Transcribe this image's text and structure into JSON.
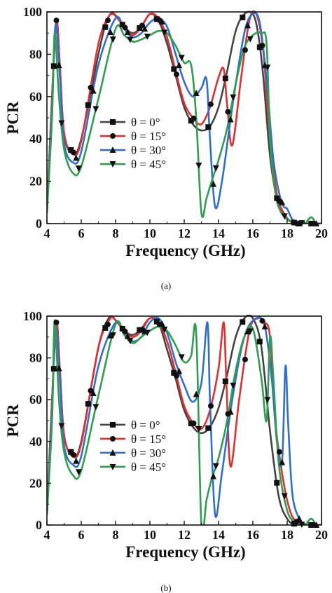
{
  "panels": [
    {
      "label": "(a)",
      "chart_data": {
        "type": "line",
        "xlabel": "Frequency (GHz)",
        "ylabel": "PCR",
        "xlim": [
          4,
          20
        ],
        "ylim": [
          0,
          100
        ],
        "xticks": [
          4,
          6,
          8,
          10,
          12,
          14,
          16,
          18,
          20
        ],
        "yticks": [
          0,
          20,
          40,
          60,
          80,
          100
        ],
        "legend_position": "center-left",
        "series": [
          {
            "name": "θ =  0°",
            "color": "#444444",
            "marker": "square",
            "x": [
              4.0,
              4.3,
              4.55,
              4.75,
              5.0,
              5.5,
              6.0,
              7.0,
              7.5,
              7.9,
              8.5,
              9.0,
              9.5,
              10.0,
              10.5,
              11.0,
              11.5,
              12.0,
              12.5,
              13.0,
              13.5,
              14.0,
              14.5,
              15.0,
              15.5,
              16.0,
              16.3,
              16.6,
              17.0,
              17.4,
              17.8,
              18.2,
              18.6,
              19.0,
              19.5,
              20.0
            ],
            "y": [
              5,
              60,
              96,
              75,
              42,
              33,
              40,
              80,
              96,
              99,
              93,
              90,
              93,
              99,
              96,
              85,
              70,
              55,
              47,
              44,
              46,
              55,
              72,
              91,
              99,
              99,
              90,
              70,
              32,
              12,
              4,
              1,
              0,
              0,
              0,
              0
            ]
          },
          {
            "name": "θ = 15°",
            "color": "#e03030",
            "marker": "circle",
            "x": [
              4.0,
              4.3,
              4.55,
              4.75,
              5.0,
              5.5,
              6.0,
              7.0,
              7.7,
              8.0,
              8.5,
              9.0,
              9.5,
              10.0,
              10.5,
              11.0,
              11.5,
              12.0,
              12.5,
              13.0,
              13.5,
              14.0,
              14.3,
              14.5,
              14.8,
              15.3,
              15.8,
              16.2,
              16.6,
              17.0,
              17.4,
              17.8,
              18.2,
              18.6,
              19.0,
              20.0
            ],
            "y": [
              5,
              60,
              96,
              75,
              43,
              33,
              39,
              85,
              99,
              98,
              93,
              89,
              93,
              99,
              97,
              88,
              72,
              57,
              50,
              47,
              55,
              69,
              73,
              56,
              37,
              68,
              96,
              99,
              82,
              40,
              14,
              5,
              1,
              0,
              0,
              0
            ]
          },
          {
            "name": "θ = 30°",
            "color": "#2f6fd0",
            "marker": "triangle-up",
            "x": [
              4.0,
              4.3,
              4.5,
              4.75,
              5.0,
              5.5,
              6.0,
              7.0,
              8.0,
              8.5,
              9.0,
              9.5,
              10.0,
              10.5,
              11.0,
              11.5,
              12.0,
              12.5,
              13.0,
              13.3,
              13.5,
              13.8,
              14.2,
              14.8,
              15.5,
              16.0,
              16.4,
              16.8,
              17.2,
              17.6,
              17.8,
              18.0,
              18.3,
              18.7,
              19.0,
              20.0
            ],
            "y": [
              5,
              55,
              94,
              70,
              38,
              29,
              34,
              75,
              97,
              92,
              88,
              90,
              95,
              97,
              93,
              80,
              67,
              60,
              64,
              68,
              40,
              8,
              20,
              55,
              90,
              99,
              95,
              68,
              30,
              12,
              8,
              7,
              2,
              0,
              0,
              0
            ]
          },
          {
            "name": "θ = 45°",
            "color": "#2f9e4f",
            "marker": "triangle-down",
            "x": [
              4.0,
              4.3,
              4.45,
              4.7,
              5.0,
              5.5,
              6.0,
              7.0,
              8.0,
              8.5,
              9.0,
              9.5,
              10.0,
              10.5,
              11.0,
              11.5,
              12.0,
              12.4,
              12.7,
              13.0,
              13.3,
              13.6,
              14.0,
              14.5,
              15.0,
              15.5,
              16.0,
              16.5,
              16.8,
              17.0,
              17.3,
              17.6,
              18.0,
              18.5,
              19.0,
              19.4,
              19.7,
              20.0
            ],
            "y": [
              5,
              50,
              90,
              60,
              35,
              24,
              27,
              59,
              92,
              89,
              86,
              87,
              89,
              91,
              90,
              84,
              76,
              75,
              50,
              5,
              12,
              20,
              30,
              45,
              66,
              83,
              89,
              90,
              85,
              40,
              15,
              6,
              2,
              1,
              0,
              3,
              0,
              0
            ]
          }
        ]
      }
    },
    {
      "label": "(b)",
      "chart_data": {
        "type": "line",
        "xlabel": "Frequency (GHz)",
        "ylabel": "PCR",
        "xlim": [
          4,
          20
        ],
        "ylim": [
          0,
          100
        ],
        "xticks": [
          4,
          6,
          8,
          10,
          12,
          14,
          16,
          18,
          20
        ],
        "yticks": [
          0,
          20,
          40,
          60,
          80,
          100
        ],
        "legend_position": "center-left",
        "series": [
          {
            "name": "θ =  0°",
            "color": "#444444",
            "marker": "square",
            "x": [
              4.0,
              4.3,
              4.55,
              4.75,
              5.0,
              5.5,
              6.0,
              7.0,
              7.6,
              8.0,
              8.5,
              9.0,
              9.5,
              10.0,
              10.5,
              11.0,
              11.5,
              12.0,
              12.5,
              13.0,
              13.5,
              14.0,
              14.5,
              15.0,
              15.5,
              16.0,
              16.5,
              17.0,
              17.5,
              18.0,
              18.5,
              19.0,
              20.0
            ],
            "y": [
              5,
              60,
              97,
              75,
              43,
              33,
              40,
              85,
              99,
              98,
              93,
              91,
              94,
              99,
              97,
              84,
              70,
              55,
              47,
              44,
              47,
              56,
              72,
              90,
              99,
              99,
              85,
              45,
              14,
              3,
              0,
              0,
              0
            ]
          },
          {
            "name": "θ = 15°",
            "color": "#e03030",
            "marker": "circle",
            "x": [
              4.0,
              4.3,
              4.55,
              4.75,
              5.0,
              5.5,
              6.0,
              7.0,
              7.7,
              8.0,
              8.5,
              9.0,
              9.5,
              10.0,
              10.5,
              11.0,
              11.5,
              12.0,
              12.5,
              13.0,
              13.5,
              14.0,
              14.3,
              14.45,
              14.7,
              15.2,
              15.8,
              16.3,
              16.7,
              17.0,
              17.3,
              17.8,
              18.2,
              18.6,
              19.0,
              20.0
            ],
            "y": [
              5,
              60,
              97,
              75,
              43,
              33,
              39,
              85,
              99,
              98,
              93,
              90,
              93,
              99,
              97,
              88,
              73,
              57,
              49,
              46,
              55,
              75,
              97,
              70,
              28,
              60,
              93,
              99,
              97,
              90,
              50,
              20,
              6,
              1,
              0,
              0
            ]
          },
          {
            "name": "θ = 30°",
            "color": "#2f6fd0",
            "marker": "triangle-up",
            "x": [
              4.0,
              4.3,
              4.5,
              4.75,
              5.0,
              5.5,
              6.0,
              7.0,
              8.0,
              8.5,
              9.0,
              9.5,
              10.0,
              10.5,
              11.0,
              11.5,
              12.0,
              12.5,
              13.0,
              13.35,
              13.5,
              13.8,
              14.2,
              14.8,
              15.5,
              16.2,
              16.7,
              17.1,
              17.4,
              17.7,
              17.9,
              18.05,
              18.3,
              18.7,
              19.0,
              20.0
            ],
            "y": [
              5,
              55,
              95,
              70,
              38,
              29,
              33,
              76,
              97,
              92,
              88,
              90,
              97,
              99,
              92,
              78,
              67,
              59,
              68,
              97,
              60,
              5,
              25,
              60,
              90,
              99,
              95,
              70,
              40,
              30,
              76,
              50,
              15,
              3,
              0,
              0
            ]
          },
          {
            "name": "θ = 45°",
            "color": "#2f9e4f",
            "marker": "triangle-down",
            "x": [
              4.0,
              4.3,
              4.45,
              4.7,
              5.0,
              5.5,
              6.0,
              7.0,
              8.0,
              8.5,
              9.0,
              9.5,
              10.0,
              10.5,
              11.0,
              11.5,
              12.0,
              12.4,
              12.7,
              13.0,
              13.3,
              13.6,
              14.0,
              14.5,
              15.0,
              15.5,
              16.0,
              16.5,
              16.8,
              17.0,
              17.2,
              17.5,
              18.0,
              18.5,
              19.0,
              19.4,
              19.7,
              20.0
            ],
            "y": [
              5,
              50,
              98,
              60,
              35,
              24,
              26,
              62,
              96,
              91,
              87,
              90,
              93,
              95,
              93,
              86,
              78,
              81,
              92,
              0,
              12,
              22,
              32,
              50,
              74,
              90,
              94,
              70,
              50,
              90,
              70,
              30,
              7,
              1,
              0,
              3,
              0,
              0
            ]
          }
        ]
      }
    }
  ]
}
